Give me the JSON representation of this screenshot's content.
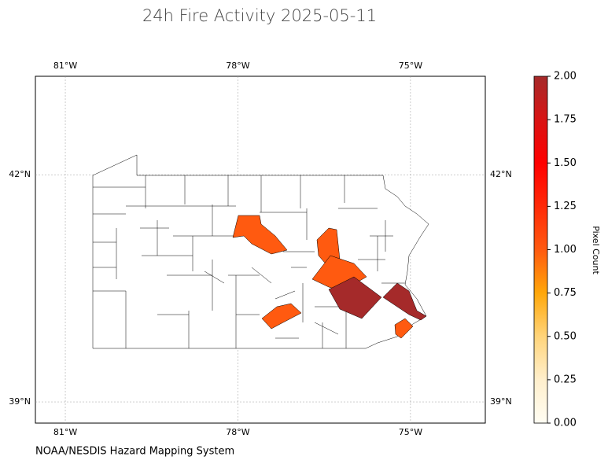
{
  "chart_data": {
    "type": "choropleth",
    "title": "24h Fire Activity 2025-05-11",
    "xlim": [
      -81.52,
      -73.7
    ],
    "xticks": [
      {
        "value": -81,
        "label": "81°W"
      },
      {
        "value": -78,
        "label": "78°W"
      },
      {
        "value": -75,
        "label": "75°W"
      }
    ],
    "ylim": [
      38.72,
      43.3
    ],
    "yticks": [
      {
        "value": 42,
        "label": "42°N"
      },
      {
        "value": 39,
        "label": "39°N"
      }
    ],
    "grid": true,
    "values": [
      1,
      1,
      1,
      2,
      2,
      1,
      1
    ],
    "colorbar": {
      "label": "Pixel Count",
      "lim": [
        0,
        2
      ],
      "ticks": [
        {
          "value": 0,
          "label": "0.00"
        },
        {
          "value": 0.25,
          "label": "0.25"
        },
        {
          "value": 0.5,
          "label": "0.50"
        },
        {
          "value": 0.75,
          "label": "0.75"
        },
        {
          "value": 1,
          "label": "1.00"
        },
        {
          "value": 1.25,
          "label": "1.25"
        },
        {
          "value": 1.5,
          "label": "1.50"
        },
        {
          "value": 1.75,
          "label": "1.75"
        },
        {
          "value": 2,
          "label": "2.00"
        }
      ],
      "colormap": [
        "#fffdf3",
        "#ffefcc",
        "#ffd47a",
        "#ffa70a",
        "#ff5a10",
        "#ff2a08",
        "#ff0000",
        "#d81414",
        "#a52a2a"
      ]
    },
    "source": "NOAA/NESDIS Hazard Mapping System"
  }
}
